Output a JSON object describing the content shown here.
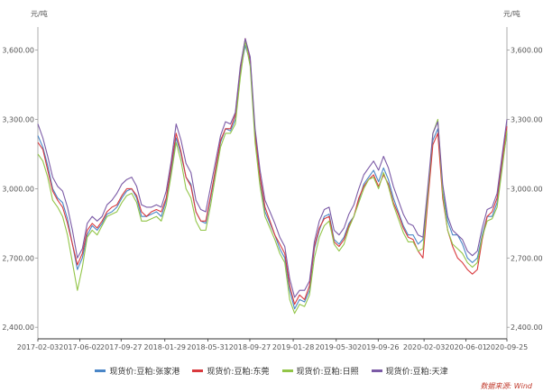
{
  "chart_data": {
    "type": "line",
    "y_unit_left": "元/吨",
    "y_unit_right": "元/吨",
    "ylim": [
      2350,
      3700
    ],
    "yticks": [
      2400,
      2700,
      3000,
      3300,
      3600
    ],
    "ytick_labels": [
      "2,400.00",
      "2,700.00",
      "3,000.00",
      "3,300.00",
      "3,600.00"
    ],
    "xlim": [
      "2017-02-03",
      "2020-09-25"
    ],
    "xtick_labels": [
      "2017-02-03",
      "2017-06-02",
      "2017-09-27",
      "2018-01-29",
      "2018-05-31",
      "2018-09-27",
      "2019-01-28",
      "2019-05-30",
      "2019-09-26",
      "2020-02-03",
      "2020-06-01",
      "2020-09-25"
    ],
    "grid": false,
    "legend_position": "bottom",
    "x": [
      "2017-02-03",
      "2017-02-17",
      "2017-03-03",
      "2017-03-17",
      "2017-03-31",
      "2017-04-14",
      "2017-04-28",
      "2017-05-12",
      "2017-05-26",
      "2017-06-09",
      "2017-06-23",
      "2017-07-07",
      "2017-07-21",
      "2017-08-04",
      "2017-08-18",
      "2017-09-01",
      "2017-09-15",
      "2017-09-29",
      "2017-10-13",
      "2017-10-27",
      "2017-11-10",
      "2017-11-24",
      "2017-12-08",
      "2017-12-22",
      "2018-01-05",
      "2018-01-19",
      "2018-02-02",
      "2018-02-16",
      "2018-03-02",
      "2018-03-16",
      "2018-03-30",
      "2018-04-13",
      "2018-04-27",
      "2018-05-11",
      "2018-05-25",
      "2018-06-08",
      "2018-06-22",
      "2018-07-06",
      "2018-07-20",
      "2018-08-03",
      "2018-08-17",
      "2018-08-31",
      "2018-09-14",
      "2018-09-28",
      "2018-10-12",
      "2018-10-26",
      "2018-11-09",
      "2018-11-23",
      "2018-12-07",
      "2018-12-21",
      "2019-01-04",
      "2019-01-18",
      "2019-02-01",
      "2019-02-15",
      "2019-03-01",
      "2019-03-15",
      "2019-03-29",
      "2019-04-12",
      "2019-04-26",
      "2019-05-10",
      "2019-05-24",
      "2019-06-07",
      "2019-06-21",
      "2019-07-05",
      "2019-07-19",
      "2019-08-02",
      "2019-08-16",
      "2019-08-30",
      "2019-09-13",
      "2019-09-27",
      "2019-10-11",
      "2019-10-25",
      "2019-11-08",
      "2019-11-22",
      "2019-12-06",
      "2019-12-20",
      "2020-01-03",
      "2020-01-17",
      "2020-01-31",
      "2020-02-14",
      "2020-02-28",
      "2020-03-13",
      "2020-03-27",
      "2020-04-10",
      "2020-04-24",
      "2020-05-08",
      "2020-05-22",
      "2020-06-05",
      "2020-06-19",
      "2020-07-03",
      "2020-07-17",
      "2020-07-31",
      "2020-08-14",
      "2020-08-28",
      "2020-09-11",
      "2020-09-25"
    ],
    "series": [
      {
        "name": "现货价:豆粕:张家港",
        "color": "#4a86c7",
        "values": [
          3230,
          3180,
          3100,
          3000,
          2960,
          2940,
          2870,
          2760,
          2650,
          2700,
          2800,
          2840,
          2820,
          2850,
          2890,
          2900,
          2920,
          2960,
          2990,
          3000,
          2960,
          2880,
          2880,
          2890,
          2900,
          2880,
          2950,
          3080,
          3220,
          3150,
          3050,
          3020,
          2900,
          2860,
          2850,
          2960,
          3080,
          3200,
          3260,
          3250,
          3300,
          3500,
          3620,
          3550,
          3230,
          3040,
          2900,
          2850,
          2800,
          2740,
          2700,
          2560,
          2480,
          2520,
          2510,
          2560,
          2740,
          2820,
          2880,
          2890,
          2780,
          2760,
          2790,
          2850,
          2880,
          2950,
          3020,
          3050,
          3080,
          3030,
          3090,
          3040,
          2960,
          2900,
          2840,
          2800,
          2800,
          2760,
          2780,
          2990,
          3210,
          3260,
          2990,
          2860,
          2800,
          2800,
          2760,
          2700,
          2680,
          2700,
          2800,
          2880,
          2880,
          2940,
          3100,
          3240
        ]
      },
      {
        "name": "现货价:豆粕:东莞",
        "color": "#d9393d",
        "values": [
          3200,
          3170,
          3080,
          2990,
          2950,
          2920,
          2850,
          2760,
          2670,
          2720,
          2820,
          2850,
          2830,
          2860,
          2900,
          2920,
          2930,
          2970,
          3000,
          3000,
          2970,
          2900,
          2880,
          2900,
          2910,
          2900,
          2960,
          3100,
          3240,
          3160,
          3050,
          3010,
          2900,
          2860,
          2860,
          2970,
          3090,
          3210,
          3260,
          3260,
          3320,
          3520,
          3650,
          3560,
          3240,
          3050,
          2920,
          2860,
          2800,
          2760,
          2720,
          2580,
          2500,
          2540,
          2520,
          2580,
          2750,
          2830,
          2870,
          2880,
          2770,
          2750,
          2780,
          2840,
          2880,
          2960,
          3010,
          3040,
          3060,
          3010,
          3060,
          3020,
          2940,
          2890,
          2830,
          2790,
          2780,
          2730,
          2700,
          2950,
          3190,
          3240,
          2960,
          2820,
          2750,
          2700,
          2680,
          2650,
          2630,
          2650,
          2780,
          2880,
          2900,
          2960,
          3120,
          3270
        ]
      },
      {
        "name": "现货价:豆粕:日照",
        "color": "#92c548",
        "values": [
          3150,
          3120,
          3050,
          2950,
          2920,
          2880,
          2800,
          2680,
          2560,
          2660,
          2790,
          2820,
          2800,
          2840,
          2880,
          2890,
          2900,
          2940,
          2970,
          2980,
          2940,
          2860,
          2860,
          2870,
          2880,
          2860,
          2930,
          3060,
          3200,
          3120,
          3000,
          2960,
          2860,
          2820,
          2820,
          2930,
          3060,
          3180,
          3240,
          3240,
          3280,
          3480,
          3640,
          3530,
          3200,
          3010,
          2880,
          2830,
          2780,
          2720,
          2680,
          2520,
          2460,
          2500,
          2490,
          2540,
          2700,
          2790,
          2840,
          2860,
          2760,
          2730,
          2760,
          2830,
          2880,
          2940,
          3000,
          3040,
          3050,
          3000,
          3070,
          3010,
          2930,
          2870,
          2810,
          2770,
          2770,
          2730,
          2740,
          2980,
          3240,
          3300,
          2980,
          2820,
          2760,
          2740,
          2720,
          2680,
          2660,
          2680,
          2790,
          2860,
          2870,
          2920,
          3080,
          3250
        ]
      },
      {
        "name": "现货价:豆粕:天津",
        "color": "#7b5aa6",
        "values": [
          3280,
          3220,
          3140,
          3050,
          3010,
          2990,
          2920,
          2820,
          2700,
          2740,
          2850,
          2880,
          2860,
          2880,
          2930,
          2950,
          2980,
          3020,
          3040,
          3050,
          3010,
          2930,
          2920,
          2920,
          2930,
          2920,
          2990,
          3120,
          3280,
          3210,
          3110,
          3070,
          2950,
          2910,
          2900,
          3010,
          3120,
          3230,
          3290,
          3280,
          3330,
          3530,
          3650,
          3570,
          3260,
          3080,
          2950,
          2900,
          2850,
          2790,
          2750,
          2610,
          2530,
          2560,
          2560,
          2600,
          2770,
          2860,
          2910,
          2920,
          2820,
          2800,
          2830,
          2890,
          2930,
          3000,
          3060,
          3090,
          3120,
          3080,
          3140,
          3090,
          3010,
          2950,
          2890,
          2850,
          2840,
          2800,
          2790,
          3010,
          3240,
          3290,
          3020,
          2880,
          2820,
          2800,
          2780,
          2730,
          2710,
          2730,
          2830,
          2910,
          2920,
          2980,
          3140,
          3300
        ]
      }
    ]
  },
  "source_text": "数据来源: Wind"
}
